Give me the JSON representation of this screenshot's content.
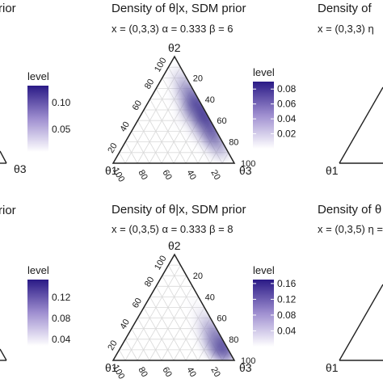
{
  "panels": {
    "left_top": {
      "title_tail": "rior",
      "legend_title": "level",
      "legend_ticks": [
        "0.10",
        "0.05"
      ],
      "corner_label": "θ3"
    },
    "left_bottom": {
      "title_tail": "rior",
      "legend_title": "level",
      "legend_ticks": [
        "0.12",
        "0.08",
        "0.04"
      ]
    },
    "right_top": {
      "title_head": "Density of",
      "subtitle_head": "x = (0,3,3)  η",
      "corner_label": "θ1"
    },
    "right_bottom": {
      "title_head": "Density of θ",
      "subtitle_head": "x = (0,3,5)  η =",
      "corner_label": "θ1"
    }
  },
  "colors": {
    "low": "#ffffff",
    "high": "#2a1a86",
    "grid": "#d9d9d9",
    "axis": "#222222"
  },
  "chart_data": [
    {
      "type": "heatmap",
      "subtype": "ternary-density",
      "title": "Density of θ|x, SDM prior",
      "subtitle": "x = (0,3,3)  α = 0.333  β = 6",
      "vertex_labels": {
        "top": "θ2",
        "left": "θ1",
        "right": "θ3"
      },
      "ticks": [
        "20",
        "40",
        "60",
        "80",
        "100"
      ],
      "legend_title": "level",
      "legend_ticks": [
        "0.08",
        "0.06",
        "0.04",
        "0.02"
      ],
      "legend_range": [
        0,
        0.09
      ],
      "density": [
        {
          "t1": 0.06,
          "t2": 0.52,
          "t3": 0.42,
          "level": 0.085
        },
        {
          "t1": 0.05,
          "t2": 0.62,
          "t3": 0.33,
          "level": 0.07
        },
        {
          "t1": 0.05,
          "t2": 0.42,
          "t3": 0.53,
          "level": 0.08
        },
        {
          "t1": 0.05,
          "t2": 0.32,
          "t3": 0.63,
          "level": 0.075
        },
        {
          "t1": 0.05,
          "t2": 0.22,
          "t3": 0.73,
          "level": 0.06
        },
        {
          "t1": 0.05,
          "t2": 0.72,
          "t3": 0.23,
          "level": 0.05
        },
        {
          "t1": 0.05,
          "t2": 0.12,
          "t3": 0.83,
          "level": 0.04
        },
        {
          "t1": 0.05,
          "t2": 0.82,
          "t3": 0.13,
          "level": 0.03
        },
        {
          "t1": 0.15,
          "t2": 0.45,
          "t3": 0.4,
          "level": 0.03
        },
        {
          "t1": 0.15,
          "t2": 0.3,
          "t3": 0.55,
          "level": 0.025
        },
        {
          "t1": 0.15,
          "t2": 0.6,
          "t3": 0.25,
          "level": 0.02
        },
        {
          "t1": 0.25,
          "t2": 0.4,
          "t3": 0.35,
          "level": 0.01
        }
      ]
    },
    {
      "type": "heatmap",
      "subtype": "ternary-density",
      "title": "Density of θ|x, SDM prior",
      "subtitle": "x = (0,3,5)  α = 0.333  β = 8",
      "vertex_labels": {
        "top": "θ2",
        "left": "θ1",
        "right": "θ3"
      },
      "ticks": [
        "20",
        "40",
        "60",
        "80",
        "100"
      ],
      "legend_title": "level",
      "legend_ticks": [
        "0.16",
        "0.12",
        "0.08",
        "0.04"
      ],
      "legend_range": [
        0,
        0.17
      ],
      "density": [
        {
          "t1": 0.04,
          "t2": 0.15,
          "t3": 0.81,
          "level": 0.16
        },
        {
          "t1": 0.04,
          "t2": 0.08,
          "t3": 0.88,
          "level": 0.12
        },
        {
          "t1": 0.05,
          "t2": 0.24,
          "t3": 0.71,
          "level": 0.12
        },
        {
          "t1": 0.05,
          "t2": 0.34,
          "t3": 0.61,
          "level": 0.08
        },
        {
          "t1": 0.1,
          "t2": 0.2,
          "t3": 0.7,
          "level": 0.07
        },
        {
          "t1": 0.05,
          "t2": 0.45,
          "t3": 0.5,
          "level": 0.04
        },
        {
          "t1": 0.15,
          "t2": 0.3,
          "t3": 0.55,
          "level": 0.02
        },
        {
          "t1": 0.05,
          "t2": 0.58,
          "t3": 0.37,
          "level": 0.015
        }
      ]
    }
  ]
}
